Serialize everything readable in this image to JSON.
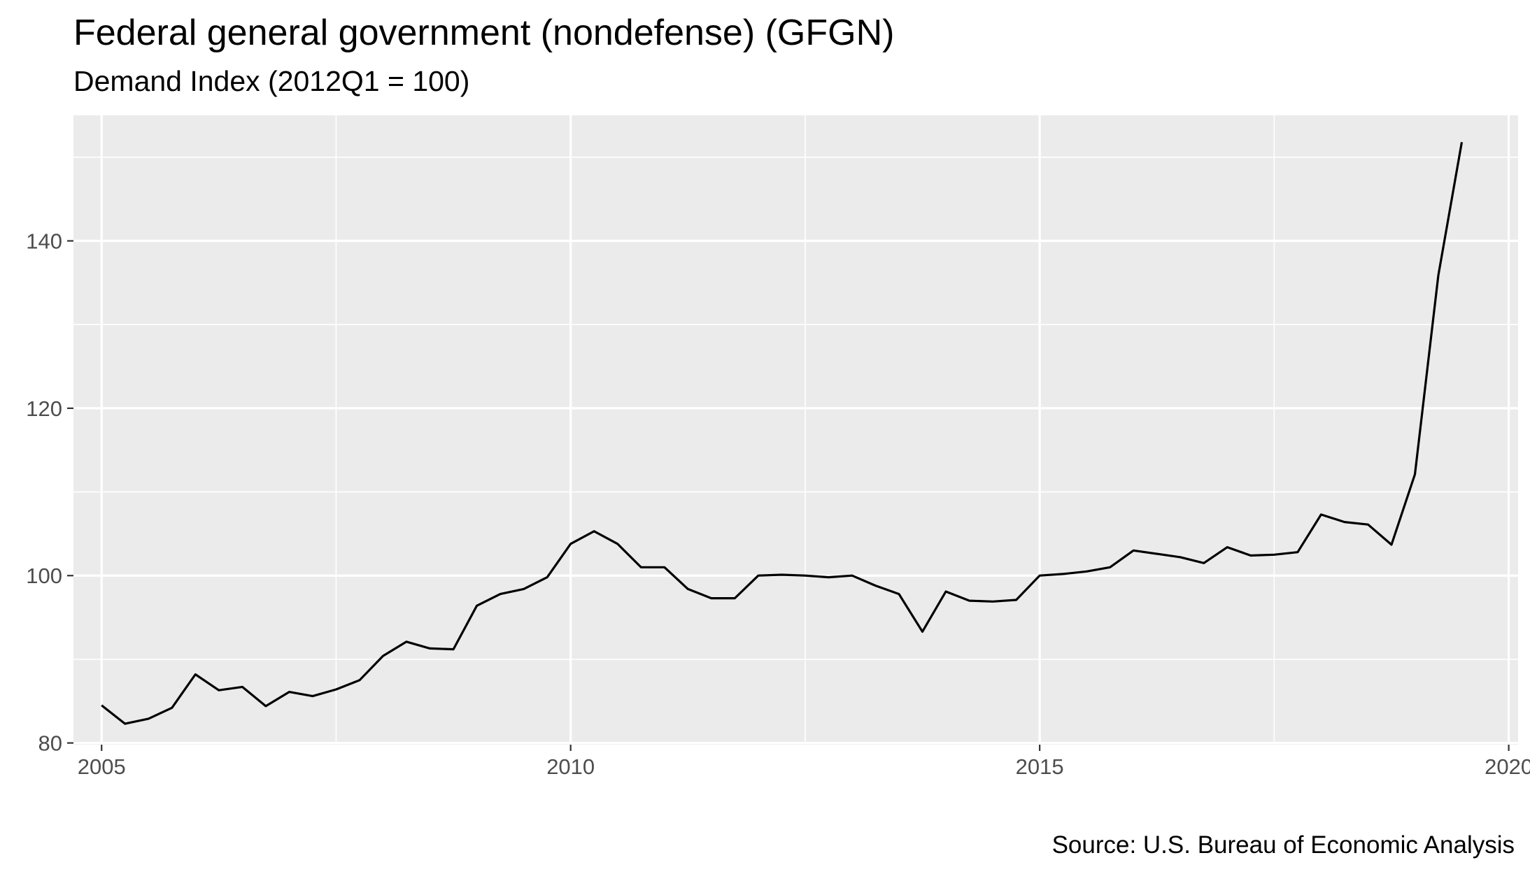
{
  "chart_data": {
    "type": "line",
    "title": "Federal general government (nondefense) (GFGN)",
    "subtitle": "Demand Index (2012Q1 = 100)",
    "caption": "Source: U.S. Bureau of Economic Analysis",
    "xlabel": "",
    "ylabel": "",
    "xlim": [
      2004.7,
      2020.1
    ],
    "ylim": [
      79.8,
      155
    ],
    "x_ticks": [
      2005,
      2010,
      2015,
      2020
    ],
    "x_tick_labels": [
      "2005",
      "2010",
      "2015",
      "2020"
    ],
    "x_minor_ticks": [
      2007.5,
      2012.5,
      2017.5
    ],
    "y_ticks": [
      80,
      100,
      120,
      140
    ],
    "y_tick_labels": [
      "80",
      "100",
      "120",
      "140"
    ],
    "y_minor_ticks": [
      90,
      110,
      130,
      150
    ],
    "grid": true,
    "colors": {
      "panel_background": "#ebebeb",
      "grid_line": "#ffffff",
      "series_line": "#000000",
      "tick_label": "#4d4d4d",
      "tick_mark": "#333333"
    },
    "series": [
      {
        "values": [
          [
            2005.0,
            84.5
          ],
          [
            2005.25,
            82.3
          ],
          [
            2005.5,
            82.9
          ],
          [
            2005.75,
            84.2
          ],
          [
            2006.0,
            88.2
          ],
          [
            2006.25,
            86.3
          ],
          [
            2006.5,
            86.7
          ],
          [
            2006.75,
            84.4
          ],
          [
            2007.0,
            86.1
          ],
          [
            2007.25,
            85.6
          ],
          [
            2007.5,
            86.4
          ],
          [
            2007.75,
            87.5
          ],
          [
            2008.0,
            90.4
          ],
          [
            2008.25,
            92.1
          ],
          [
            2008.5,
            91.3
          ],
          [
            2008.75,
            91.2
          ],
          [
            2009.0,
            96.4
          ],
          [
            2009.25,
            97.8
          ],
          [
            2009.5,
            98.4
          ],
          [
            2009.75,
            99.8
          ],
          [
            2010.0,
            103.8
          ],
          [
            2010.25,
            105.3
          ],
          [
            2010.5,
            103.8
          ],
          [
            2010.75,
            101.0
          ],
          [
            2011.0,
            101.0
          ],
          [
            2011.25,
            98.4
          ],
          [
            2011.5,
            97.3
          ],
          [
            2011.75,
            97.3
          ],
          [
            2012.0,
            100.0
          ],
          [
            2012.25,
            100.1
          ],
          [
            2012.5,
            100.0
          ],
          [
            2012.75,
            99.8
          ],
          [
            2013.0,
            100.0
          ],
          [
            2013.25,
            98.8
          ],
          [
            2013.5,
            97.8
          ],
          [
            2013.75,
            93.3
          ],
          [
            2014.0,
            98.1
          ],
          [
            2014.25,
            97.0
          ],
          [
            2014.5,
            96.9
          ],
          [
            2014.75,
            97.1
          ],
          [
            2015.0,
            100.0
          ],
          [
            2015.25,
            100.2
          ],
          [
            2015.5,
            100.5
          ],
          [
            2015.75,
            101.0
          ],
          [
            2016.0,
            103.0
          ],
          [
            2016.25,
            102.6
          ],
          [
            2016.5,
            102.2
          ],
          [
            2016.75,
            101.5
          ],
          [
            2017.0,
            103.4
          ],
          [
            2017.25,
            102.4
          ],
          [
            2017.5,
            102.5
          ],
          [
            2017.75,
            102.8
          ],
          [
            2018.0,
            107.3
          ],
          [
            2018.25,
            106.4
          ],
          [
            2018.5,
            106.1
          ],
          [
            2018.75,
            103.7
          ],
          [
            2019.0,
            112.1
          ],
          [
            2019.25,
            135.9
          ],
          [
            2019.5,
            151.8
          ]
        ]
      }
    ]
  }
}
